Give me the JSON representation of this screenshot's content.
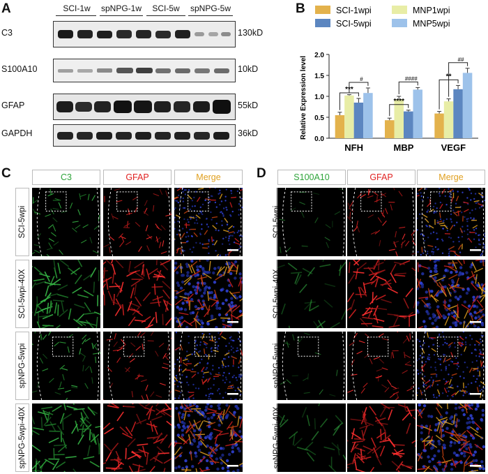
{
  "panels": {
    "A": "A",
    "B": "B",
    "C": "C",
    "D": "D"
  },
  "western_blot": {
    "groups": [
      "SCI-1w",
      "spNPG-1w",
      "SCI-5w",
      "spNPG-5w"
    ],
    "rows": [
      {
        "name": "C3",
        "kd": "130kD"
      },
      {
        "name": "S100A10",
        "kd": "10kD"
      },
      {
        "name": "GFAP",
        "kd": "55kD"
      },
      {
        "name": "GAPDH",
        "kd": "36kD"
      }
    ]
  },
  "chart_data": {
    "type": "bar",
    "ylabel": "Relative Expression level",
    "ylim": [
      0.0,
      2.0
    ],
    "yticks": [
      "0.0",
      "0.5",
      "1.0",
      "1.5",
      "2.0"
    ],
    "categories": [
      "NFH",
      "MBP",
      "VEGF"
    ],
    "series": [
      {
        "name": "SCI-1wpi",
        "color": "#e3b24c",
        "values": [
          0.55,
          0.43,
          0.59
        ],
        "errors": [
          0.07,
          0.05,
          0.05
        ]
      },
      {
        "name": "MNP1wpi",
        "color": "#e8eda6",
        "values": [
          1.02,
          0.93,
          0.88
        ],
        "errors": [
          0.02,
          0.07,
          0.06
        ]
      },
      {
        "name": "SCI-5wpi",
        "color": "#5c86c0",
        "values": [
          0.85,
          0.64,
          1.17
        ],
        "errors": [
          0.1,
          0.03,
          0.09
        ]
      },
      {
        "name": "MNP5wpi",
        "color": "#9dc2ea",
        "values": [
          1.08,
          1.16,
          1.56
        ],
        "errors": [
          0.12,
          0.05,
          0.11
        ]
      }
    ],
    "significance": [
      {
        "category": "NFH",
        "left_mark": "***",
        "right_mark": "#"
      },
      {
        "category": "MBP",
        "left_mark": "****",
        "right_mark": "####"
      },
      {
        "category": "VEGF",
        "left_mark": "**",
        "right_mark": "##"
      }
    ],
    "legend_position": "top"
  },
  "panel_c": {
    "columns": [
      "C3",
      "GFAP",
      "Merge"
    ],
    "column_colors": [
      "#2ea43a",
      "#e02020",
      "#e0a020"
    ],
    "rows": [
      "SCI-5wpi",
      "SCI-5wpi-40X",
      "spNPG-5wpi",
      "spNPG-5wpi-40X"
    ]
  },
  "panel_d": {
    "columns": [
      "S100A10",
      "GFAP",
      "Merge"
    ],
    "column_colors": [
      "#2ea43a",
      "#e02020",
      "#e0a020"
    ],
    "rows": [
      "SCI-5wpi",
      "SCI-5wpi-40X",
      "spNPG-5wpi",
      "spNPG-5wpi-40X"
    ]
  }
}
